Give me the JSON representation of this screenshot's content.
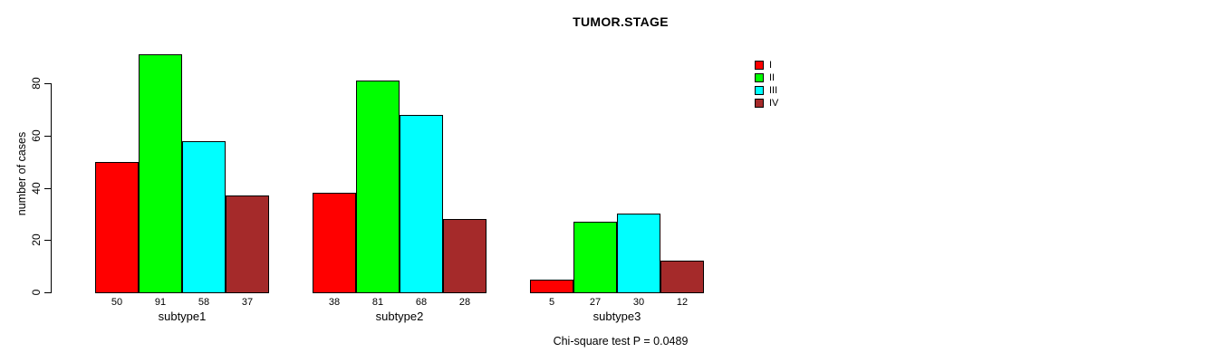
{
  "chart_data": {
    "type": "bar",
    "title": "TUMOR.STAGE",
    "ylabel": "number of cases",
    "xlabel": "",
    "categories": [
      "subtype1",
      "subtype2",
      "subtype3"
    ],
    "series": [
      {
        "name": "I",
        "color": "#FF0000",
        "values": [
          50,
          38,
          5
        ]
      },
      {
        "name": "II",
        "color": "#00FF00",
        "values": [
          91,
          81,
          27
        ]
      },
      {
        "name": "III",
        "color": "#00FFFF",
        "values": [
          58,
          68,
          30
        ]
      },
      {
        "name": "IV",
        "color": "#A52A2A",
        "values": [
          37,
          28,
          12
        ]
      }
    ],
    "bar_value_labels": {
      "subtype1": [
        "50",
        "91",
        "58",
        "37"
      ],
      "subtype2": [
        "38",
        "81",
        "68",
        "28"
      ],
      "subtype3": [
        "5",
        "27",
        "30",
        "12"
      ]
    },
    "yticks": [
      0,
      20,
      40,
      60,
      80
    ],
    "ylim": [
      0,
      91
    ],
    "grid": false,
    "legend_position": "top-right",
    "legend_labels": [
      "I",
      "II",
      "III",
      "IV"
    ],
    "footnote": "Chi-square test P = 0.0489"
  }
}
